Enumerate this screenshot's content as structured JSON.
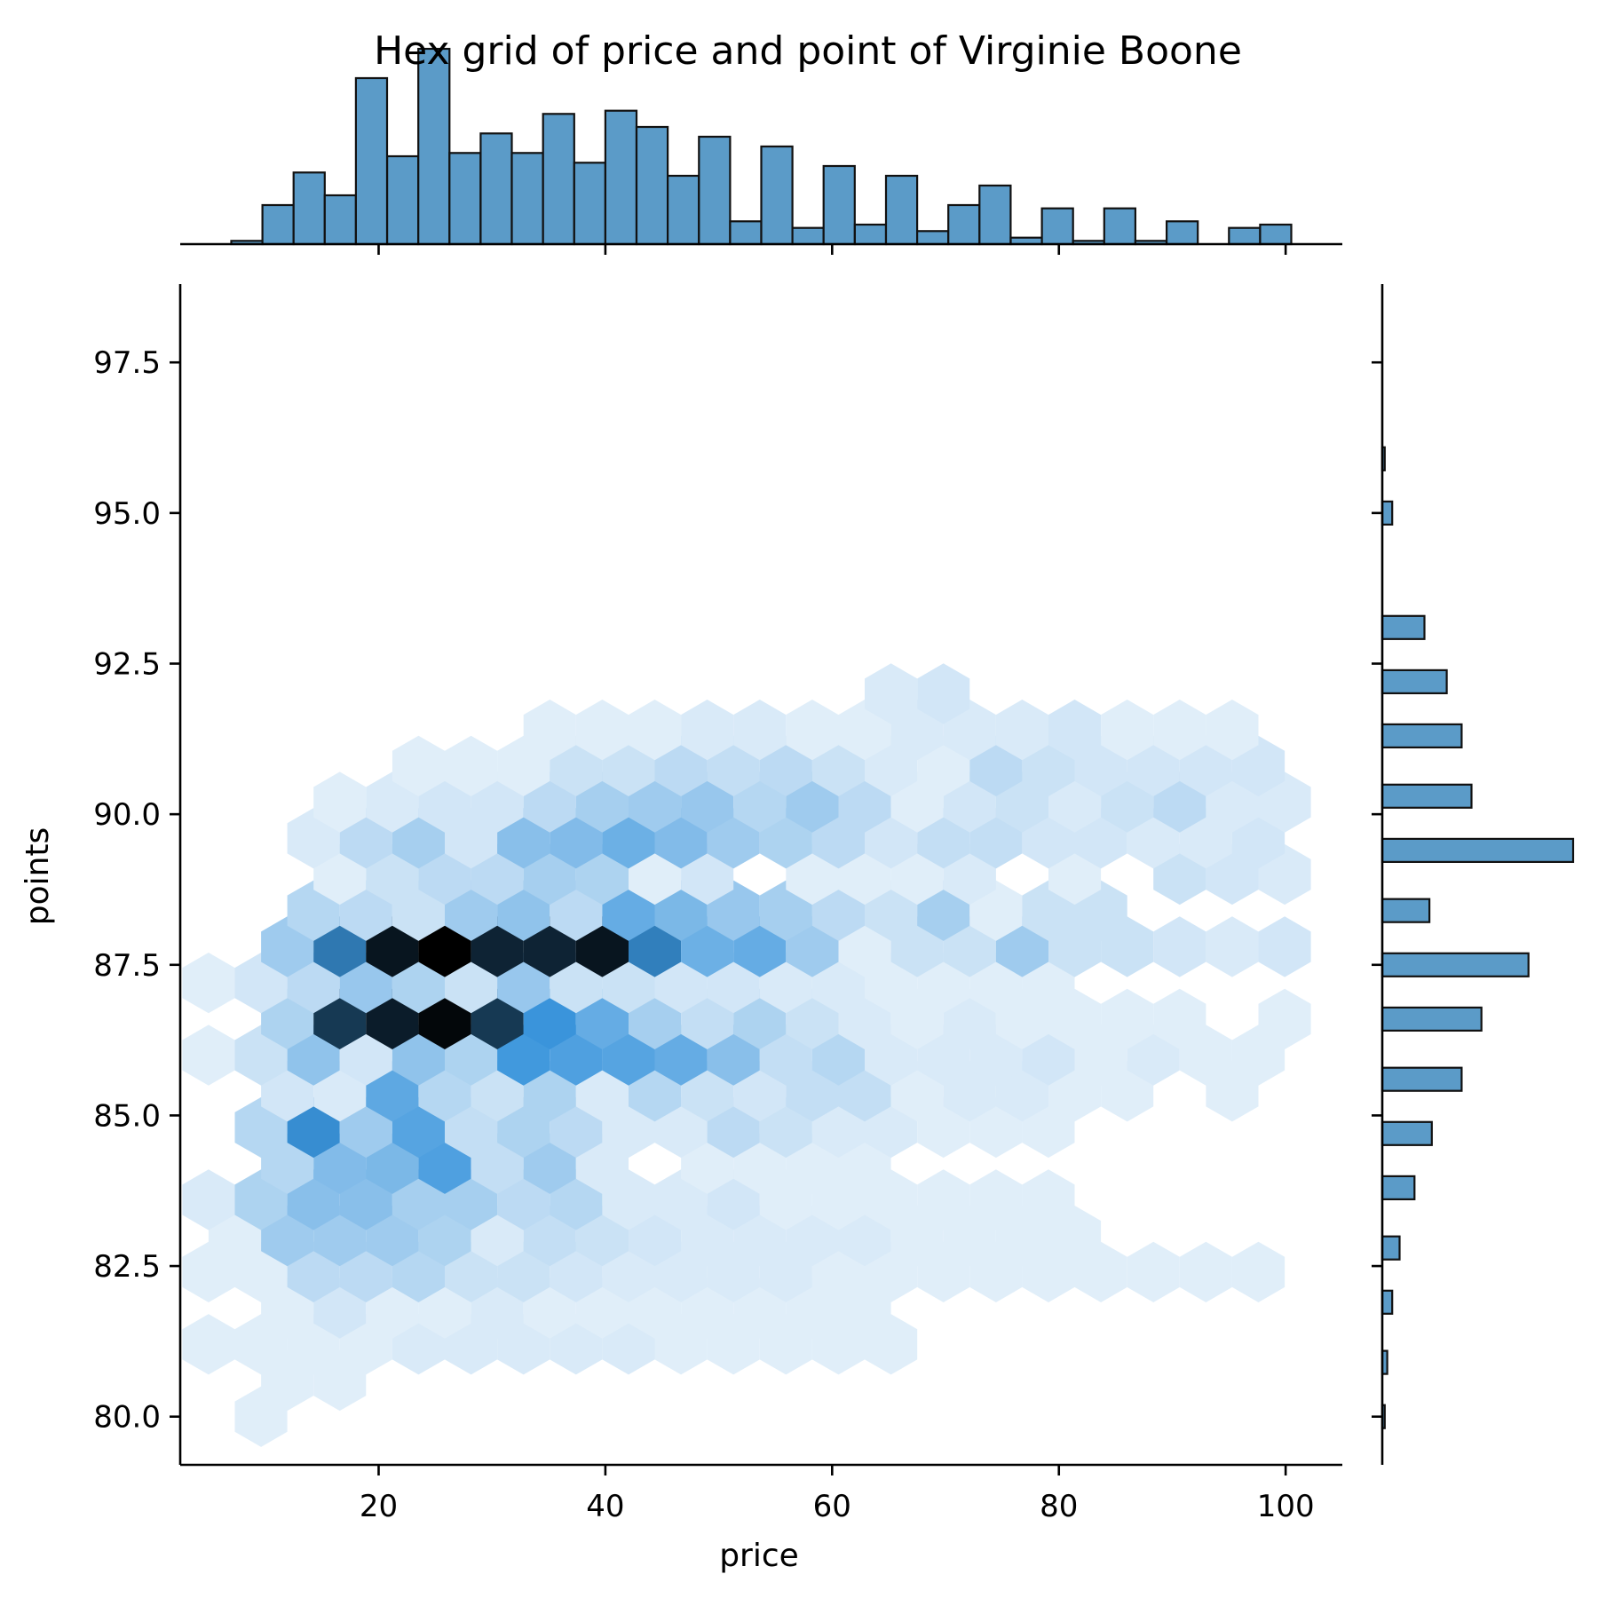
{
  "colors": {
    "bar_fill": "#5b9bc8",
    "bar_edge": "#111111",
    "hex_max": "#000000",
    "hex_mid": "#3a95dc",
    "hex_low": "#f5f9fd",
    "axis": "#000000"
  },
  "chart_data": {
    "type": "heatmap",
    "subtype": "hexbin-jointplot",
    "title": "Hex grid of price and point of Virginie Boone",
    "xlabel": "price",
    "ylabel": "points",
    "xlim": [
      2.5,
      105
    ],
    "ylim": [
      79.2,
      98.8
    ],
    "xticks": [
      20,
      40,
      60,
      80,
      100
    ],
    "yticks": [
      80.0,
      82.5,
      85.0,
      87.5,
      90.0,
      92.5,
      95.0,
      97.5
    ],
    "xtick_labels": [
      "20",
      "40",
      "60",
      "80",
      "100"
    ],
    "ytick_labels": [
      "80.0",
      "82.5",
      "85.0",
      "87.5",
      "90.0",
      "92.5",
      "95.0",
      "97.5"
    ],
    "hex_grid": {
      "x_min": 5,
      "x_max": 100,
      "x_step": 4.63,
      "y_min": 80.0,
      "y_step": 1.2,
      "rows": [
        [
          0,
          1,
          0,
          0,
          0,
          0,
          0,
          0,
          0,
          0,
          0,
          0,
          0,
          0,
          0,
          0,
          0,
          0,
          0,
          0,
          0
        ],
        [
          0,
          1,
          1,
          0,
          0,
          0,
          0,
          0,
          0,
          0,
          0,
          0,
          0,
          0,
          0,
          0,
          0,
          0,
          0,
          0,
          0
        ],
        [
          1,
          1,
          1,
          1,
          2,
          2,
          2,
          2,
          2,
          1,
          1,
          1,
          1,
          1,
          0,
          0,
          0,
          0,
          0,
          0,
          0
        ],
        [
          0,
          1,
          3,
          1,
          1,
          2,
          1,
          1,
          1,
          1,
          1,
          1,
          1,
          0,
          0,
          0,
          0,
          0,
          0,
          0,
          0
        ],
        [
          1,
          1,
          6,
          6,
          7,
          4,
          4,
          3,
          2,
          2,
          2,
          2,
          1,
          1,
          1,
          1,
          1,
          1,
          1,
          1,
          1
        ],
        [
          1,
          10,
          10,
          10,
          8,
          2,
          5,
          4,
          3,
          2,
          2,
          2,
          2,
          1,
          1,
          1,
          1,
          0,
          0,
          0,
          0
        ],
        [
          2,
          8,
          13,
          13,
          9,
          9,
          6,
          7,
          2,
          2,
          3,
          1,
          1,
          1,
          1,
          1,
          1,
          0,
          0,
          0,
          0
        ],
        [
          0,
          7,
          14,
          15,
          21,
          5,
          10,
          2,
          0,
          1,
          1,
          1,
          1,
          0,
          0,
          0,
          0,
          0,
          0,
          0,
          0
        ],
        [
          0,
          7,
          25,
          10,
          20,
          5,
          8,
          6,
          2,
          2,
          6,
          4,
          2,
          2,
          1,
          1,
          1,
          0,
          0,
          0,
          0
        ],
        [
          0,
          3,
          2,
          19,
          7,
          4,
          8,
          2,
          7,
          4,
          3,
          5,
          5,
          1,
          2,
          2,
          1,
          1,
          0,
          1,
          0
        ],
        [
          1,
          4,
          12,
          3,
          12,
          8,
          23,
          21,
          20,
          18,
          13,
          5,
          7,
          2,
          2,
          2,
          3,
          1,
          2,
          1,
          1
        ],
        [
          0,
          8,
          37,
          41,
          44,
          37,
          24,
          18,
          9,
          5,
          8,
          4,
          2,
          1,
          2,
          1,
          1,
          1,
          1,
          0,
          1
        ],
        [
          1,
          3,
          6,
          11,
          8,
          4,
          11,
          4,
          4,
          3,
          3,
          2,
          2,
          1,
          1,
          1,
          1,
          0,
          0,
          0,
          0
        ],
        [
          0,
          10,
          28,
          42,
          45,
          40,
          40,
          42,
          27,
          17,
          18,
          10,
          1,
          4,
          4,
          10,
          4,
          4,
          3,
          2,
          3
        ],
        [
          0,
          0,
          7,
          6,
          4,
          10,
          12,
          6,
          18,
          15,
          11,
          9,
          6,
          4,
          9,
          1,
          4,
          4,
          0,
          0,
          0
        ],
        [
          0,
          0,
          1,
          4,
          6,
          6,
          9,
          8,
          1,
          3,
          0,
          1,
          1,
          1,
          2,
          0,
          1,
          0,
          4,
          3,
          2
        ],
        [
          0,
          0,
          2,
          6,
          9,
          3,
          13,
          14,
          17,
          14,
          10,
          8,
          6,
          3,
          5,
          5,
          3,
          3,
          2,
          2,
          3
        ],
        [
          0,
          0,
          1,
          2,
          3,
          3,
          6,
          9,
          10,
          11,
          7,
          10,
          6,
          1,
          3,
          4,
          2,
          4,
          6,
          2,
          2
        ],
        [
          0,
          0,
          0,
          0,
          1,
          1,
          1,
          4,
          4,
          6,
          5,
          6,
          4,
          2,
          1,
          6,
          4,
          3,
          3,
          3,
          3
        ],
        [
          0,
          0,
          0,
          0,
          0,
          0,
          1,
          1,
          1,
          2,
          2,
          1,
          1,
          2,
          2,
          2,
          3,
          1,
          1,
          1,
          0
        ],
        [
          0,
          0,
          0,
          0,
          0,
          0,
          0,
          0,
          0,
          0,
          0,
          0,
          0,
          2,
          3,
          0,
          0,
          0,
          0,
          0,
          0
        ],
        [
          0,
          0,
          0,
          0,
          0,
          0,
          0,
          0,
          0,
          0,
          0,
          0,
          0,
          0,
          0,
          0,
          0,
          0,
          0,
          0,
          0
        ],
        [
          0,
          0,
          0,
          0,
          0,
          0,
          0,
          0,
          0,
          0,
          0,
          0,
          0,
          0,
          0,
          0,
          0,
          0,
          0,
          0,
          0
        ],
        [
          0,
          0,
          0,
          0,
          0,
          0,
          0,
          0,
          0,
          0,
          0,
          0,
          0,
          0,
          0,
          0,
          0,
          0,
          0,
          0,
          0
        ]
      ],
      "max_count": 45
    },
    "x_histogram": {
      "bin_edges": [
        7.0,
        9.75,
        12.5,
        15.25,
        18.0,
        20.75,
        23.5,
        26.25,
        29.0,
        31.75,
        34.5,
        37.25,
        40.0,
        42.75,
        45.5,
        48.25,
        51.0,
        53.75,
        56.5,
        59.25,
        62.0,
        64.75,
        67.5,
        70.25,
        73.0,
        75.75,
        78.5,
        81.25,
        84.0,
        86.75,
        89.5,
        92.25,
        95.0,
        97.75,
        100.5
      ],
      "counts": [
        1,
        12,
        22,
        15,
        51,
        27,
        60,
        28,
        34,
        28,
        40,
        25,
        41,
        36,
        21,
        33,
        7,
        30,
        5,
        24,
        6,
        21,
        4,
        12,
        18,
        2,
        11,
        1,
        11,
        1,
        7,
        0,
        5,
        6
      ]
    },
    "y_histogram": {
      "bin_centers": [
        80.0,
        80.9,
        81.9,
        82.8,
        83.8,
        84.7,
        85.6,
        86.6,
        87.5,
        88.4,
        89.4,
        90.3,
        91.3,
        92.2,
        93.1,
        94.1,
        95.0,
        95.9,
        96.9,
        97.8
      ],
      "counts": [
        1,
        2,
        4,
        7,
        13,
        20,
        32,
        40,
        59,
        19,
        77,
        36,
        32,
        26,
        17,
        0,
        4,
        1,
        0,
        0
      ]
    }
  }
}
